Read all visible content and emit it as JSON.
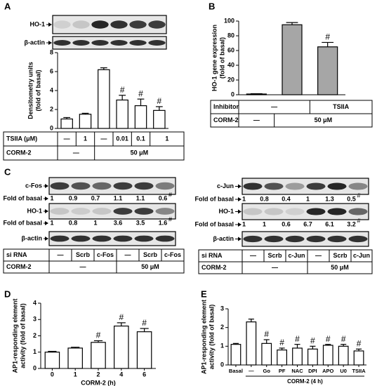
{
  "panel_labels": [
    "A",
    "B",
    "C",
    "D",
    "E"
  ],
  "chart_data": [
    {
      "type": "bar",
      "ylabel": [
        "Densitometry units",
        "(fold of basal)"
      ],
      "values": [
        1.0,
        1.5,
        6.2,
        3.0,
        2.4,
        1.9
      ],
      "errors": [
        0.15,
        0.1,
        0.2,
        0.5,
        0.7,
        0.4
      ],
      "colors": [
        "#ffffff",
        "#ffffff",
        "#ffffff",
        "#ffffff",
        "#ffffff",
        "#ffffff"
      ],
      "ylim": [
        0,
        8
      ],
      "yticks": [
        0,
        2,
        4,
        6,
        8
      ],
      "annotations": [
        {
          "text": "#",
          "index": 3
        },
        {
          "text": "#",
          "index": 4
        },
        {
          "text": "#",
          "index": 5
        }
      ],
      "table": {
        "rows": [
          {
            "label": "TSIIA (μM)",
            "cells": [
              {
                "text": "—"
              },
              {
                "text": "1"
              },
              {
                "text": "—"
              },
              {
                "text": "0.01"
              },
              {
                "text": "0.1"
              },
              {
                "text": "1"
              }
            ]
          },
          {
            "label": "CORM-2",
            "cells": [
              {
                "text": "—",
                "span": 2
              },
              {
                "text": "50 μM",
                "span": 4
              }
            ]
          }
        ]
      }
    },
    {
      "type": "bar",
      "ylabel": [
        "HO-1 gene expression",
        "(fold of basal)"
      ],
      "values": [
        1,
        95,
        65
      ],
      "errors": [
        0.5,
        3,
        6
      ],
      "colors": [
        "#ffffff",
        "#a6a6a6",
        "#a6a6a6"
      ],
      "ylim": [
        0,
        100
      ],
      "yticks": [
        0,
        20,
        40,
        60,
        80,
        100
      ],
      "annotations": [
        {
          "text": "#",
          "index": 2
        }
      ],
      "table": {
        "rows": [
          {
            "label": "Inhibitor",
            "cells": [
              {
                "text": "—",
                "span": 2
              },
              {
                "text": "TSIIA"
              }
            ]
          },
          {
            "label": "CORM-2",
            "cells": [
              {
                "text": "—"
              },
              {
                "text": "50 μM",
                "span": 2
              }
            ]
          }
        ]
      }
    },
    {
      "type": "bar",
      "ylabel": [
        "AP1-responding element",
        "activity (fold of basal)"
      ],
      "categories": [
        "0",
        "1",
        "2",
        "4",
        "6"
      ],
      "xlabel": "CORM-2 (h)",
      "values": [
        1.0,
        1.25,
        1.6,
        2.6,
        2.25
      ],
      "errors": [
        0.05,
        0.05,
        0.1,
        0.2,
        0.2
      ],
      "colors": [
        "#ffffff",
        "#ffffff",
        "#ffffff",
        "#ffffff",
        "#ffffff"
      ],
      "ylim": [
        0,
        4
      ],
      "yticks": [
        0,
        1,
        2,
        3,
        4
      ],
      "annotations": [
        {
          "text": "#",
          "index": 2
        },
        {
          "text": "#",
          "index": 3
        },
        {
          "text": "#",
          "index": 4
        }
      ]
    },
    {
      "type": "bar",
      "ylabel": [
        "AP1-responding element",
        "activity (fold of basal)"
      ],
      "categories": [
        "Basal",
        "—",
        "Go",
        "PF",
        "NAC",
        "DPI",
        "APO",
        "U0",
        "TSIIA"
      ],
      "xlabel": "CORM-2 (4 h)",
      "values": [
        1.1,
        2.3,
        1.15,
        0.8,
        0.9,
        0.85,
        1.05,
        1.0,
        0.75
      ],
      "errors": [
        0.05,
        0.15,
        0.2,
        0.1,
        0.2,
        0.15,
        0.05,
        0.1,
        0.1
      ],
      "colors": [
        "#ffffff",
        "#ffffff",
        "#ffffff",
        "#ffffff",
        "#ffffff",
        "#ffffff",
        "#ffffff",
        "#ffffff",
        "#ffffff"
      ],
      "ylim": [
        0,
        3
      ],
      "yticks": [
        0,
        1,
        2,
        3
      ],
      "annotations": [
        {
          "text": "#",
          "index": 2
        },
        {
          "text": "#",
          "index": 3
        },
        {
          "text": "#",
          "index": 4
        },
        {
          "text": "#",
          "index": 5
        },
        {
          "text": "#",
          "index": 6
        },
        {
          "text": "#",
          "index": 7
        },
        {
          "text": "#",
          "index": 8
        }
      ]
    }
  ],
  "blots": [
    {
      "rows": [
        {
          "label": "HO-1"
        },
        {
          "label": "β-actin"
        }
      ]
    },
    {
      "rows": [
        {
          "label": "c-Fos",
          "fold": {
            "label": "Fold of basal",
            "values": [
              1,
              0.9,
              0.7,
              1.1,
              1.1,
              0.6
            ],
            "note": "#"
          }
        },
        {
          "label": "HO-1",
          "fold": {
            "label": "Fold of basal",
            "values": [
              1,
              0.8,
              1,
              3.6,
              3.5,
              1.6
            ],
            "note": "#"
          }
        },
        {
          "label": "β-actin"
        }
      ],
      "table": {
        "rows": [
          {
            "label": "si RNA",
            "cells": [
              {
                "text": "—"
              },
              {
                "text": "Scrb"
              },
              {
                "text": "c-Fos"
              },
              {
                "text": "—"
              },
              {
                "text": "Scrb"
              },
              {
                "text": "c-Fos"
              }
            ]
          },
          {
            "label": "CORM-2",
            "cells": [
              {
                "text": "—",
                "span": 3
              },
              {
                "text": "50 μM",
                "span": 3
              }
            ]
          }
        ]
      }
    },
    {
      "rows": [
        {
          "label": "c-Jun",
          "fold": {
            "label": "Fold of basal",
            "values": [
              1,
              0.8,
              0.4,
              1,
              1.3,
              0.5
            ],
            "note": "#"
          }
        },
        {
          "label": "HO-1",
          "fold": {
            "label": "Fold of basal",
            "values": [
              1,
              1,
              0.6,
              6.7,
              6.1,
              3.2
            ],
            "note": "#"
          }
        },
        {
          "label": "β-actin"
        }
      ],
      "table": {
        "rows": [
          {
            "label": "si RNA",
            "cells": [
              {
                "text": "—"
              },
              {
                "text": "Scrb"
              },
              {
                "text": "c-Jun"
              },
              {
                "text": "—"
              },
              {
                "text": "Scrb"
              },
              {
                "text": "c-Jun"
              }
            ]
          },
          {
            "label": "CORM-2",
            "cells": [
              {
                "text": "—",
                "span": 3
              },
              {
                "text": "50 μM",
                "span": 3
              }
            ]
          }
        ]
      }
    }
  ]
}
